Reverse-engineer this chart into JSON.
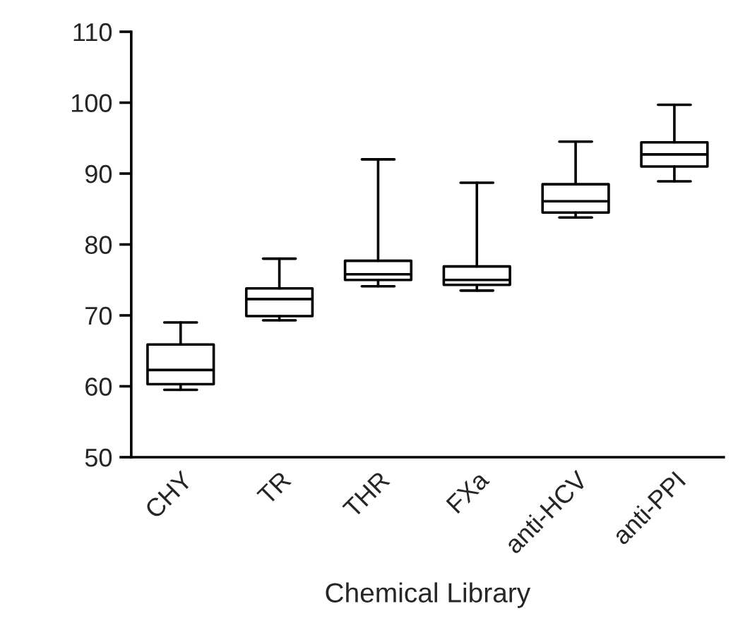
{
  "chart_data": {
    "type": "box",
    "xlabel": "Chemical Library",
    "categories": [
      "CHY",
      "TR",
      "THR",
      "FXa",
      "anti-HCV",
      "anti-PPI"
    ],
    "boxes": [
      {
        "low": 59.5,
        "q1": 60.3,
        "median": 62.3,
        "q3": 65.9,
        "high": 69
      },
      {
        "low": 69.3,
        "q1": 69.9,
        "median": 72.3,
        "q3": 73.8,
        "high": 78
      },
      {
        "low": 74.1,
        "q1": 75,
        "median": 75.8,
        "q3": 77.7,
        "high": 92
      },
      {
        "low": 73.5,
        "q1": 74.3,
        "median": 75,
        "q3": 76.9,
        "high": 88.7
      },
      {
        "low": 83.8,
        "q1": 84.5,
        "median": 86.1,
        "q3": 88.5,
        "high": 94.5
      },
      {
        "low": 88.9,
        "q1": 91,
        "median": 92.7,
        "q3": 94.4,
        "high": 99.7
      }
    ],
    "color": "#000000",
    "ylim": [
      50,
      110
    ],
    "yticks": [
      50,
      60,
      70,
      80,
      90,
      100,
      110
    ],
    "grid": false
  }
}
